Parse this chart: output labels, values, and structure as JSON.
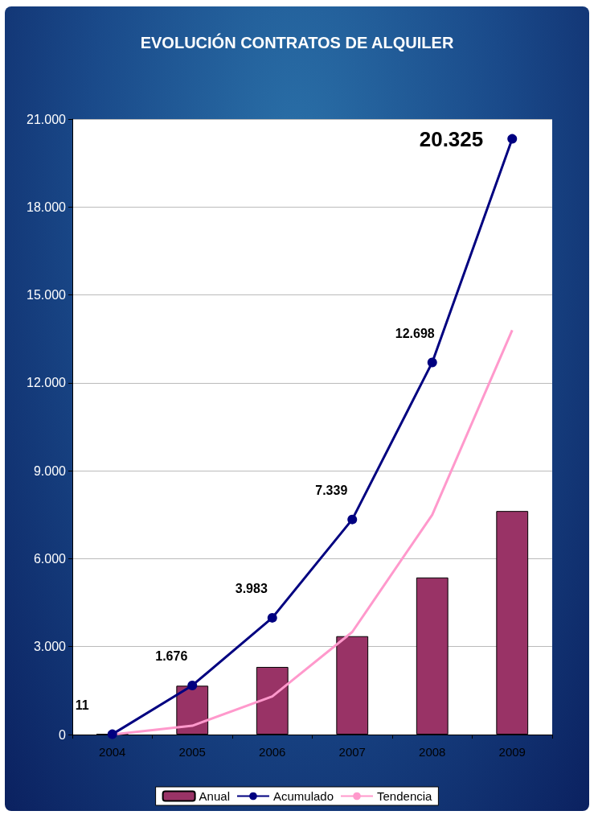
{
  "chart_data": {
    "type": "bar",
    "title": "EVOLUCIÓN CONTRATOS DE ALQUILER",
    "categories": [
      "2004",
      "2005",
      "2006",
      "2007",
      "2008",
      "2009"
    ],
    "series": [
      {
        "name": "Anual",
        "color": "#993366",
        "values": [
          11,
          1665,
          2307,
          3356,
          5359,
          7627
        ]
      },
      {
        "name": "Acumulado",
        "type": "line",
        "color": "#000080",
        "marker": "circle",
        "values": [
          11,
          1676,
          3983,
          7339,
          12698,
          20325
        ],
        "value_labels": [
          "11",
          "1.676",
          "3.983",
          "7.339",
          "12.698",
          "20.325"
        ]
      },
      {
        "name": "Tendencia",
        "type": "line",
        "color": "#ff99cc",
        "marker": "none",
        "values": [
          0,
          300,
          1300,
          3500,
          7500,
          13800
        ]
      }
    ],
    "ylim": [
      0,
      21000
    ],
    "yticks": [
      {
        "value": 0,
        "label": "0"
      },
      {
        "value": 3000,
        "label": "3.000"
      },
      {
        "value": 6000,
        "label": "6.000"
      },
      {
        "value": 9000,
        "label": "9.000"
      },
      {
        "value": 12000,
        "label": "12.000"
      },
      {
        "value": 15000,
        "label": "15.000"
      },
      {
        "value": 18000,
        "label": "18.000"
      },
      {
        "value": 21000,
        "label": "21.000"
      }
    ],
    "grid": "y",
    "legend": "bottom"
  }
}
